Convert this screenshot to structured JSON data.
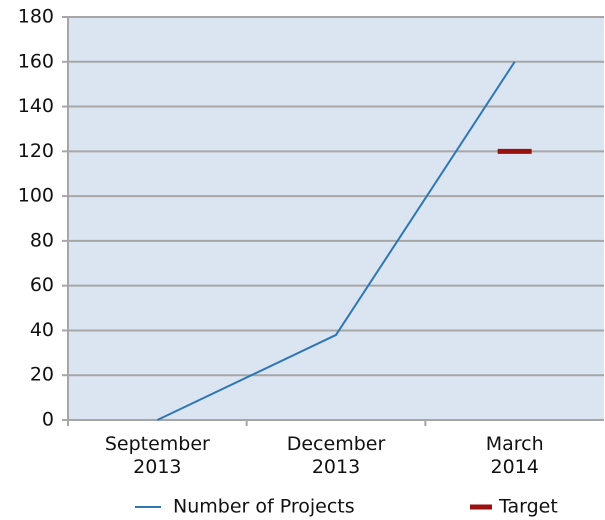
{
  "chart_data": {
    "type": "line",
    "categories": [
      "September 2013",
      "December 2013",
      "March 2014"
    ],
    "series": [
      {
        "name": "Number of Projects",
        "color": "#2f77b4",
        "values": [
          0,
          38,
          160
        ]
      },
      {
        "name": "Target",
        "color": "#991111",
        "values": [
          null,
          null,
          120
        ],
        "marker": "dash"
      }
    ],
    "ylim": [
      0,
      180
    ],
    "yticks": [
      0,
      20,
      40,
      60,
      80,
      100,
      120,
      140,
      160,
      180
    ],
    "grid": true,
    "legend": "bottom"
  }
}
